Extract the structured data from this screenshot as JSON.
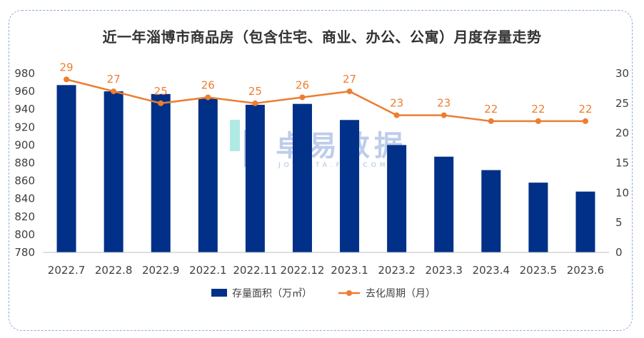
{
  "title": "近一年淄博市商品房（包含住宅、商业、办公、公寓）月度存量走势",
  "watermark": {
    "main": "卓易数据",
    "sub": "JOYDATA.FOJ.COM"
  },
  "colors": {
    "bar": "#003087",
    "line": "#ed7d31",
    "frame": "#8faadc"
  },
  "chart_data": {
    "type": "bar+line",
    "categories": [
      "2022.7",
      "2022.8",
      "2022.9",
      "2022.1",
      "2022.11",
      "2022.12",
      "2023.1",
      "2023.2",
      "2023.3",
      "2023.4",
      "2023.5",
      "2023.6"
    ],
    "series": [
      {
        "name": "存量面积（万㎡）",
        "type": "bar",
        "axis": "left",
        "values": [
          967,
          960,
          957,
          952,
          945,
          946,
          928,
          900,
          887,
          872,
          858,
          848
        ]
      },
      {
        "name": "去化周期（月）",
        "type": "line",
        "axis": "right",
        "values": [
          29,
          27,
          25,
          26,
          25,
          26,
          27,
          23,
          23,
          22,
          22,
          22
        ]
      }
    ],
    "y_left": {
      "min": 780,
      "max": 980,
      "step": 20,
      "ticks": [
        "780",
        "800",
        "820",
        "840",
        "860",
        "880",
        "900",
        "920",
        "940",
        "960",
        "980"
      ]
    },
    "y_right": {
      "min": 0,
      "max": 30,
      "step": 5,
      "ticks": [
        "0",
        "5",
        "10",
        "15",
        "20",
        "25",
        "30"
      ]
    },
    "legend": [
      "存量面积（万㎡）",
      "去化周期（月）"
    ],
    "legend_position": "bottom",
    "grid": false
  }
}
